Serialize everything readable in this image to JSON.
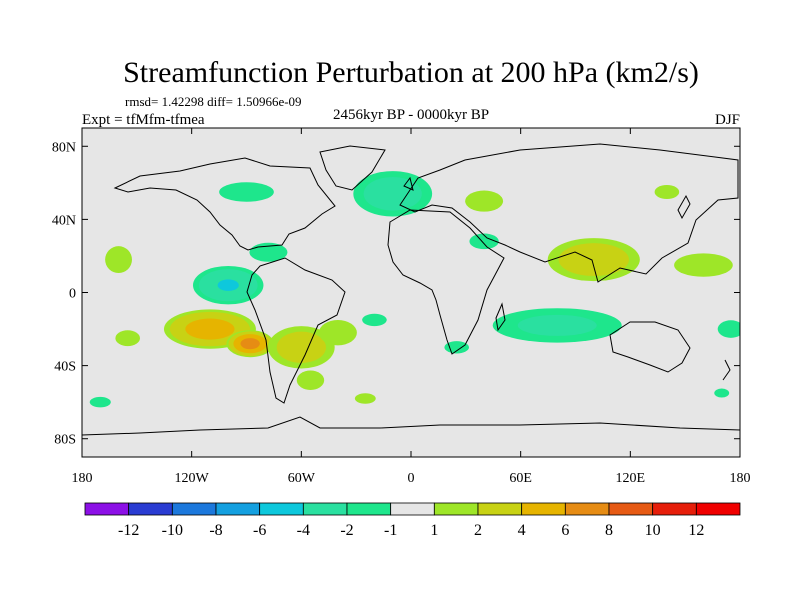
{
  "chart_data": {
    "type": "heatmap",
    "title": "Streamfunction Perturbation at 200 hPa (km2/s)",
    "stats": "rmsd= 1.42298 diff= 1.50966e-09",
    "expt": "Expt = tfMfm-tfmea",
    "period": "2456kyr BP - 0000kyr BP",
    "season": "DJF",
    "x_ticks": [
      {
        "value": -180,
        "label": "180"
      },
      {
        "value": -120,
        "label": "120W"
      },
      {
        "value": -60,
        "label": "60W"
      },
      {
        "value": 0,
        "label": "0"
      },
      {
        "value": 60,
        "label": "60E"
      },
      {
        "value": 120,
        "label": "120E"
      },
      {
        "value": 180,
        "label": "180"
      }
    ],
    "y_ticks": [
      {
        "value": 80,
        "label": "80N"
      },
      {
        "value": 40,
        "label": "40N"
      },
      {
        "value": 0,
        "label": "0"
      },
      {
        "value": -40,
        "label": "40S"
      },
      {
        "value": -80,
        "label": "80S"
      }
    ],
    "xlim": [
      -180,
      180
    ],
    "ylim": [
      -90,
      90
    ],
    "levels": [
      -12,
      -10,
      -8,
      -6,
      -4,
      -2,
      -1,
      1,
      2,
      4,
      6,
      8,
      10,
      12
    ],
    "level_labels": [
      "-12",
      "-10",
      "-8",
      "-6",
      "-4",
      "-2",
      "-1",
      "1",
      "2",
      "4",
      "6",
      "8",
      "10",
      "12"
    ],
    "colors": [
      "#8c10e6",
      "#2a3cd2",
      "#1c78dc",
      "#14a0e0",
      "#0ec8dc",
      "#2ae0a0",
      "#1ee68c",
      "#e6e6e6",
      "#9ee628",
      "#c8d214",
      "#e6b400",
      "#e68c14",
      "#e65a14",
      "#e61e0a",
      "#f00000"
    ],
    "anomalies": [
      {
        "lon": -160,
        "lat": 18,
        "rx": 12,
        "ry": 12,
        "val": 1.6
      },
      {
        "lon": -100,
        "lat": 4,
        "rx": 22,
        "ry": 12,
        "val": -4.3
      },
      {
        "lon": -78,
        "lat": 22,
        "rx": 18,
        "ry": 9,
        "val": -1.5
      },
      {
        "lon": -110,
        "lat": -20,
        "rx": 28,
        "ry": 12,
        "val": 5.2
      },
      {
        "lon": -88,
        "lat": -28,
        "rx": 14,
        "ry": 8,
        "val": 7.0
      },
      {
        "lon": -60,
        "lat": -30,
        "rx": 22,
        "ry": 14,
        "val": 3.2
      },
      {
        "lon": -40,
        "lat": -22,
        "rx": 18,
        "ry": 12,
        "val": 1.5
      },
      {
        "lon": -55,
        "lat": -48,
        "rx": 14,
        "ry": 10,
        "val": 1.4
      },
      {
        "lon": -25,
        "lat": -58,
        "rx": 14,
        "ry": 7,
        "val": 1.2
      },
      {
        "lon": -155,
        "lat": -25,
        "rx": 14,
        "ry": 9,
        "val": 1.3
      },
      {
        "lon": -170,
        "lat": -60,
        "rx": 12,
        "ry": 6,
        "val": -1.3
      },
      {
        "lon": -90,
        "lat": 55,
        "rx": 28,
        "ry": 10,
        "val": -1.4
      },
      {
        "lon": -10,
        "lat": 54,
        "rx": 26,
        "ry": 15,
        "val": -3.2
      },
      {
        "lon": 40,
        "lat": 50,
        "rx": 18,
        "ry": 10,
        "val": 1.5
      },
      {
        "lon": 40,
        "lat": 28,
        "rx": 15,
        "ry": 8,
        "val": -1.4
      },
      {
        "lon": 140,
        "lat": 55,
        "rx": 14,
        "ry": 8,
        "val": 1.3
      },
      {
        "lon": 100,
        "lat": 18,
        "rx": 30,
        "ry": 14,
        "val": 3.4
      },
      {
        "lon": 160,
        "lat": 15,
        "rx": 25,
        "ry": 10,
        "val": 1.7
      },
      {
        "lon": 80,
        "lat": -18,
        "rx": 45,
        "ry": 12,
        "val": -2.6
      },
      {
        "lon": -20,
        "lat": -15,
        "rx": 14,
        "ry": 7,
        "val": -1.3
      },
      {
        "lon": 25,
        "lat": -30,
        "rx": 14,
        "ry": 7,
        "val": -1.3
      },
      {
        "lon": 175,
        "lat": -20,
        "rx": 15,
        "ry": 10,
        "val": -1.3
      },
      {
        "lon": 170,
        "lat": -55,
        "rx": 10,
        "ry": 6,
        "val": -1.2
      }
    ]
  }
}
